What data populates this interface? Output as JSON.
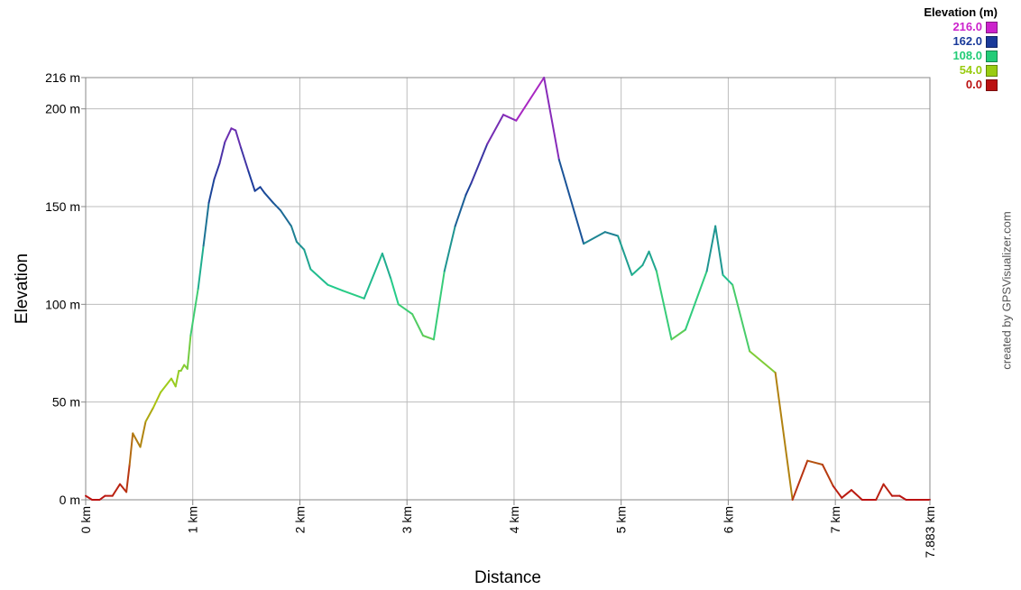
{
  "chart_data": {
    "type": "line",
    "xlabel": "Distance",
    "ylabel": "Elevation",
    "x_unit": "km",
    "y_unit": "m",
    "xlim": [
      0,
      7.883
    ],
    "ylim": [
      0,
      216
    ],
    "x_ticks": [
      0,
      1,
      2,
      3,
      4,
      5,
      6,
      7,
      7.883
    ],
    "x_tick_labels": [
      "0 km",
      "1 km",
      "2 km",
      "3 km",
      "4 km",
      "5 km",
      "6 km",
      "7 km",
      "7.883 km"
    ],
    "y_ticks": [
      0,
      50,
      100,
      150,
      200,
      216
    ],
    "y_tick_labels": [
      "0 m",
      "50 m",
      "100 m",
      "150 m",
      "200 m",
      "216 m"
    ],
    "grid": true,
    "legend": {
      "title": "Elevation (m)",
      "placement": "top-right",
      "entries": [
        {
          "label": "216.0",
          "color": "#cc22cc"
        },
        {
          "label": "162.0",
          "color": "#1a3a9a"
        },
        {
          "label": "108.0",
          "color": "#22cc77"
        },
        {
          "label": "54.0",
          "color": "#99cc11"
        },
        {
          "label": "0.0",
          "color": "#bb1111"
        }
      ]
    },
    "series": [
      {
        "color_scale": "elevation",
        "x": [
          0,
          0.06,
          0.13,
          0.18,
          0.25,
          0.32,
          0.38,
          0.41,
          0.44,
          0.51,
          0.56,
          0.63,
          0.7,
          0.8,
          0.84,
          0.87,
          0.89,
          0.92,
          0.95,
          0.98,
          1.05,
          1.1,
          1.15,
          1.2,
          1.25,
          1.3,
          1.36,
          1.4,
          1.45,
          1.52,
          1.58,
          1.63,
          1.67,
          1.75,
          1.82,
          1.92,
          1.97,
          2.04,
          2.1,
          2.26,
          2.4,
          2.6,
          2.77,
          2.85,
          2.92,
          3.05,
          3.15,
          3.25,
          3.35,
          3.45,
          3.55,
          3.6,
          3.75,
          3.9,
          4.02,
          4.28,
          4.42,
          4.65,
          4.85,
          4.97,
          5.1,
          5.2,
          5.26,
          5.33,
          5.47,
          5.6,
          5.8,
          5.88,
          5.95,
          6.04,
          6.2,
          6.44,
          6.6,
          6.74,
          6.88,
          6.98,
          7.06,
          7.15,
          7.25,
          7.38,
          7.45,
          7.53,
          7.6,
          7.66,
          7.883
        ],
        "y": [
          2,
          0,
          0,
          2,
          2,
          8,
          4,
          18,
          34,
          27,
          40,
          47,
          55,
          62,
          58,
          66,
          66,
          69,
          67,
          84,
          108,
          130,
          152,
          164,
          172,
          183,
          190,
          189,
          180,
          168,
          158,
          160,
          157,
          152,
          148,
          140,
          132,
          128,
          118,
          110,
          107,
          103,
          126,
          113,
          100,
          95,
          84,
          82,
          117,
          140,
          156,
          162,
          182,
          197,
          194,
          216,
          174,
          131,
          137,
          135,
          115,
          120,
          127,
          117,
          82,
          87,
          117,
          140,
          115,
          110,
          76,
          65,
          0,
          20,
          18,
          7,
          1,
          5,
          0,
          0,
          8,
          2,
          2,
          0,
          0
        ]
      }
    ],
    "credit": "created by GPSVisualizer.com"
  }
}
